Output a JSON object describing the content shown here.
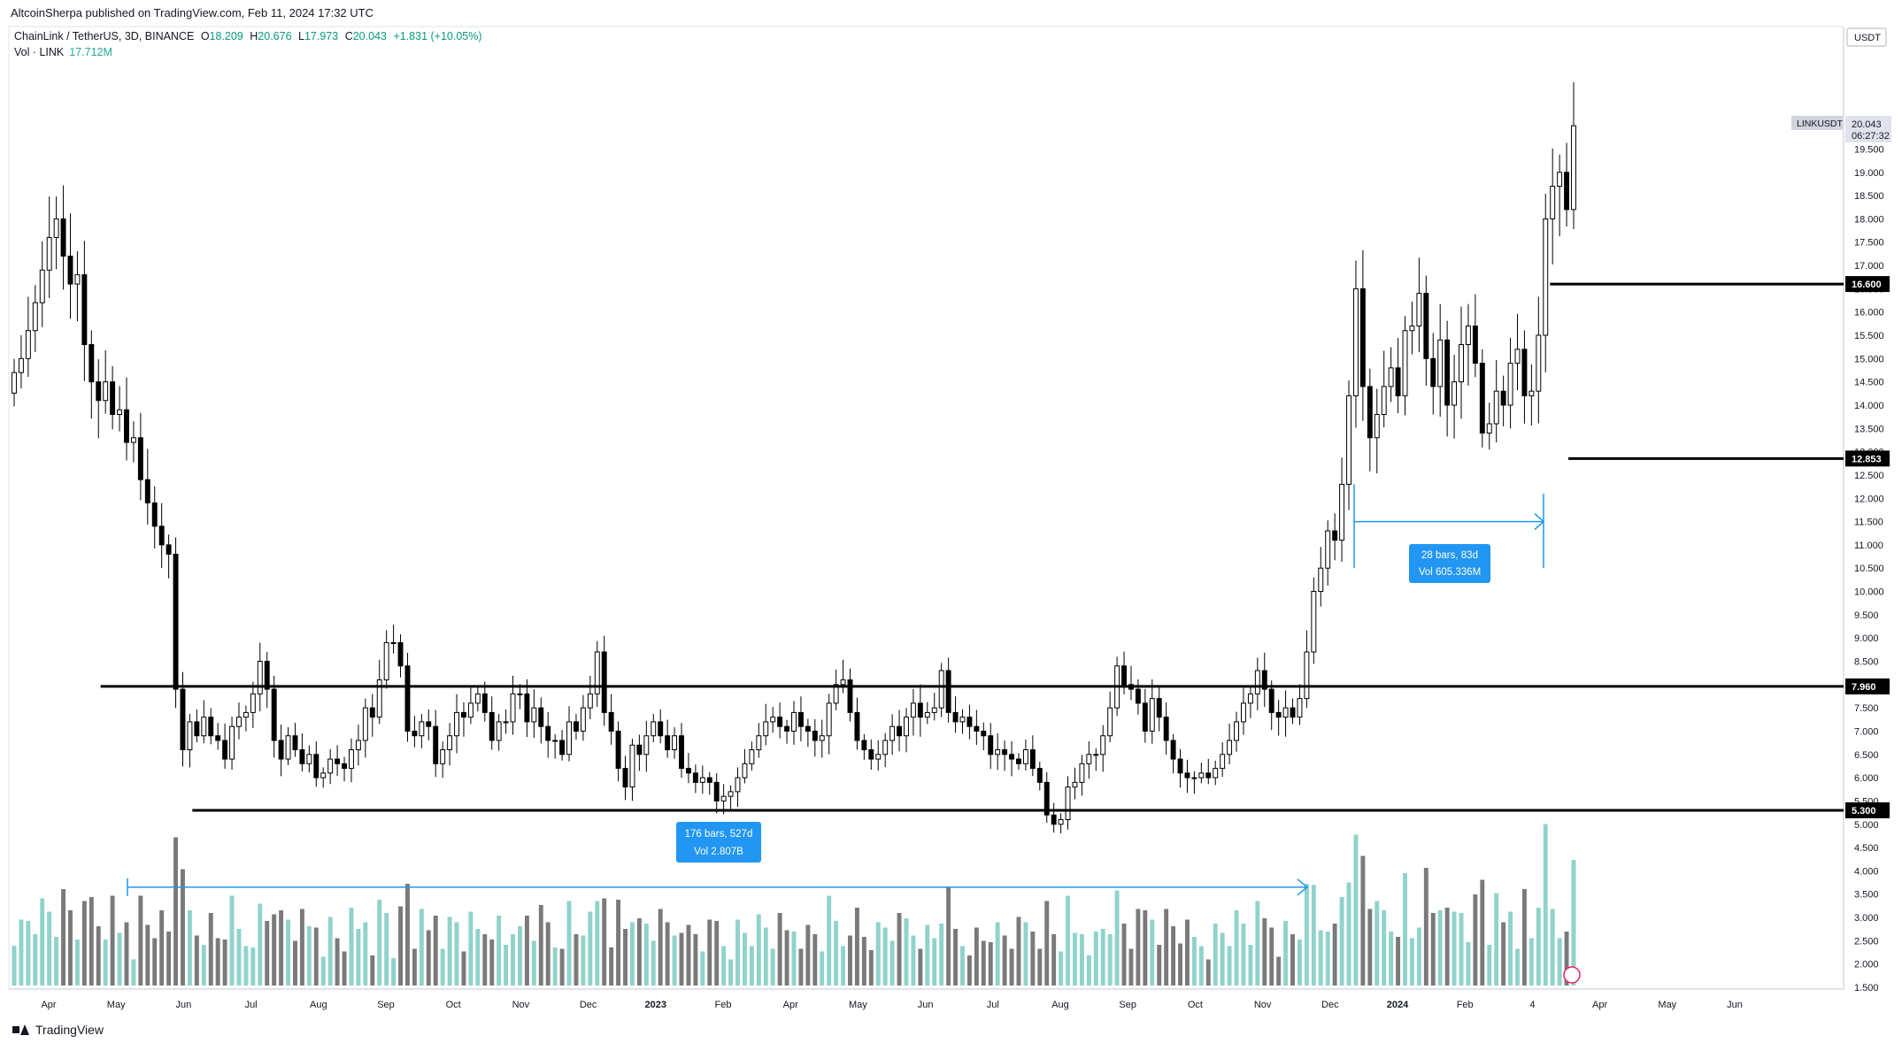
{
  "header": {
    "published": "AltcoinSherpa published on TradingView.com, Feb 11, 2024 17:32 UTC",
    "symbol": "ChainLink / TetherUS, 3D, BINANCE",
    "ohlc": {
      "o_label": "O",
      "o": "18.209",
      "h_label": "H",
      "h": "20.676",
      "l_label": "L",
      "l": "17.973",
      "c_label": "C",
      "c": "20.043",
      "change": "+1.831 (+10.05%)"
    },
    "vol_label": "Vol · LINK",
    "vol_value": "17.712M"
  },
  "footer": {
    "brand": "TradingView"
  },
  "price_scale": {
    "currency": "USDT",
    "ticker_tag": "LINKUSDT",
    "last_price": "20.043",
    "countdown": "06:27:32",
    "ticks": [
      "19.500",
      "19.000",
      "18.500",
      "18.000",
      "17.500",
      "17.000",
      "16.500",
      "16.000",
      "15.500",
      "15.000",
      "14.500",
      "14.000",
      "13.500",
      "13.000",
      "12.500",
      "12.000",
      "11.500",
      "11.000",
      "10.500",
      "10.000",
      "9.500",
      "9.000",
      "8.500",
      "8.000",
      "7.500",
      "7.000",
      "6.500",
      "6.000",
      "5.500",
      "5.000",
      "4.500",
      "4.000",
      "3.500",
      "3.000",
      "2.500",
      "2.000",
      "1.500"
    ],
    "level_labels": [
      "16.600",
      "12.853",
      "7.960",
      "5.300"
    ]
  },
  "colors": {
    "up_volume": "#8fd3cb",
    "down_volume": "#7a7a7a",
    "line": "#000000",
    "measure": "#2196f3",
    "candle_down": "#000000",
    "candle_up": "#ffffff"
  },
  "chart_data": {
    "type": "candlestick",
    "x_ticks": [
      "Apr",
      "May",
      "Jun",
      "Jul",
      "Aug",
      "Sep",
      "Oct",
      "Nov",
      "Dec",
      "2023",
      "Feb",
      "Apr",
      "May",
      "Jun",
      "Jul",
      "Aug",
      "Sep",
      "Oct",
      "Nov",
      "Dec",
      "2024",
      "Feb",
      "4",
      "Apr",
      "May",
      "Jun"
    ],
    "ylim": [
      1.5,
      20.8
    ],
    "horizontal_levels": [
      {
        "value": 16.6,
        "from_index": 0.84,
        "to_index": 1
      },
      {
        "value": 12.853,
        "from_index": 0.85,
        "to_index": 1
      },
      {
        "value": 7.96,
        "from_index": 0.05,
        "to_index": 1
      },
      {
        "value": 5.3,
        "from_index": 0.1,
        "to_index": 1
      }
    ],
    "measures": [
      {
        "label1": "176 bars, 527d",
        "label2": "Vol 2.807B",
        "y_value": 3.65
      },
      {
        "label1": "28 bars, 83d",
        "label2": "Vol 605.336M",
        "y_value": 11.5
      }
    ],
    "close_series": [
      14.7,
      15.0,
      15.6,
      16.2,
      16.9,
      17.6,
      18.0,
      17.2,
      16.6,
      16.8,
      15.3,
      14.5,
      14.1,
      14.5,
      13.8,
      13.9,
      13.2,
      13.3,
      12.4,
      11.9,
      11.4,
      11.0,
      10.8,
      7.9,
      6.6,
      7.2,
      6.9,
      7.3,
      6.9,
      6.8,
      6.4,
      7.1,
      7.3,
      7.4,
      7.8,
      8.5,
      7.9,
      6.8,
      6.4,
      6.9,
      6.6,
      6.3,
      6.5,
      6.0,
      6.1,
      6.4,
      6.3,
      6.2,
      6.6,
      6.8,
      7.5,
      7.3,
      8.1,
      8.9,
      8.9,
      8.4,
      7.0,
      6.9,
      7.2,
      7.1,
      6.3,
      6.6,
      6.9,
      7.4,
      7.3,
      7.6,
      7.8,
      7.4,
      6.8,
      7.2,
      7.2,
      7.8,
      7.8,
      7.2,
      7.5,
      7.1,
      6.8,
      6.8,
      6.5,
      7.2,
      7.0,
      7.5,
      7.8,
      8.7,
      7.4,
      7.0,
      6.2,
      5.8,
      6.7,
      6.5,
      6.9,
      7.2,
      6.9,
      6.6,
      6.9,
      6.2,
      6.1,
      5.9,
      6.0,
      5.9,
      5.5,
      5.6,
      5.7,
      6.0,
      6.3,
      6.6,
      6.9,
      7.2,
      7.3,
      7.1,
      7.0,
      7.4,
      7.1,
      7.0,
      6.8,
      6.9,
      7.6,
      8.0,
      8.1,
      7.4,
      6.8,
      6.6,
      6.4,
      6.5,
      6.8,
      7.1,
      6.9,
      7.3,
      7.6,
      7.3,
      7.4,
      7.5,
      8.3,
      7.4,
      7.2,
      7.3,
      7.1,
      7.0,
      6.9,
      6.5,
      6.6,
      6.5,
      6.4,
      6.3,
      6.6,
      6.2,
      5.9,
      5.2,
      5.0,
      5.1,
      5.8,
      5.9,
      6.3,
      6.5,
      6.5,
      6.9,
      7.5,
      8.4,
      8.0,
      7.9,
      7.6,
      7.0,
      7.7,
      7.3,
      6.8,
      6.4,
      6.1,
      6.0,
      6.0,
      6.1,
      6.0,
      6.2,
      6.5,
      6.8,
      7.2,
      7.6,
      7.8,
      8.3,
      7.9,
      7.4,
      7.3,
      7.5,
      7.3,
      7.7,
      8.7,
      10.0,
      10.5,
      11.3,
      11.1,
      12.3,
      14.2,
      16.5,
      14.4,
      13.3,
      13.8,
      14.4,
      14.8,
      14.2,
      15.6,
      15.7,
      16.4,
      15.0,
      14.4,
      15.4,
      14.0,
      14.5,
      15.3,
      15.7,
      14.9,
      13.4,
      13.6,
      14.3,
      14.0,
      14.9,
      15.2,
      14.2,
      14.3,
      15.5,
      18.0,
      18.7,
      19.0,
      18.2,
      20.0
    ],
    "volume_note": "volume histogram in the lower pane; up-candle bars teal, down-candle bars grey"
  }
}
